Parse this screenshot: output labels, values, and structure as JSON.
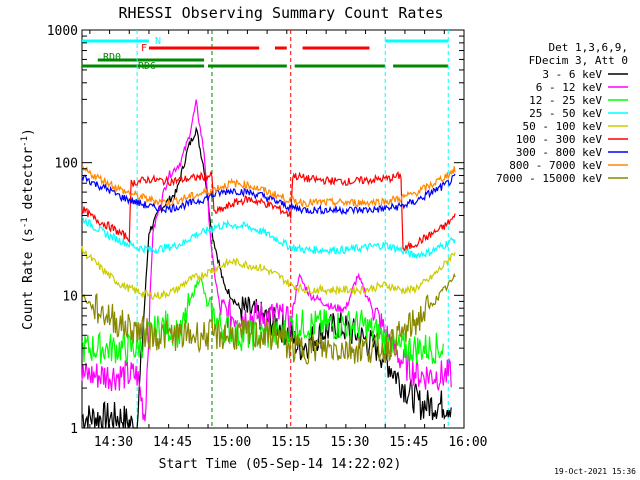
{
  "chart_data": {
    "type": "line",
    "title": "RHESSI Observing Summary Count Rates",
    "xlabel": "Start Time (05-Sep-14 14:22:02)",
    "ylabel": "Count Rate (s",
    "ylabel_sup": "-1",
    "ylabel_tail": " detector",
    "ylabel_tail_sup": "-1",
    "ylabel_close": ")",
    "yscale": "log",
    "ylim": [
      1,
      1000
    ],
    "xlim_minutes": [
      0,
      97
    ],
    "x_tick_labels": [
      {
        "label": "14:30",
        "minute": 8
      },
      {
        "label": "14:45",
        "minute": 23
      },
      {
        "label": "15:00",
        "minute": 38
      },
      {
        "label": "15:15",
        "minute": 53
      },
      {
        "label": "15:30",
        "minute": 68
      },
      {
        "label": "15:45",
        "minute": 83
      },
      {
        "label": "16:00",
        "minute": 98
      }
    ],
    "y_tick_labels": [
      {
        "label": "1",
        "value": 1
      },
      {
        "label": "10",
        "value": 10
      },
      {
        "label": "100",
        "value": 100
      },
      {
        "label": "1000",
        "value": 1000
      }
    ],
    "legend_header": [
      "Det 1,3,6,9,",
      "FDecim 3, Att 0"
    ],
    "legend_position": "right",
    "timestamp": "19-Oct-2021 15:36",
    "flags": [
      {
        "label": "N",
        "color": "#00ffff",
        "segments": [
          [
            0,
            17
          ],
          [
            77,
            93
          ]
        ]
      },
      {
        "label": "F",
        "color": "#ff0000",
        "segments": [
          [
            17,
            45
          ],
          [
            49,
            52
          ],
          [
            56,
            73
          ]
        ]
      },
      {
        "label": "RD0",
        "color": "#008800",
        "segments": [
          [
            4,
            31
          ]
        ]
      },
      {
        "label": "RD6",
        "color": "#008800",
        "segments": [
          [
            0,
            14
          ],
          [
            14,
            31
          ],
          [
            32,
            52
          ],
          [
            54,
            77
          ],
          [
            79,
            93
          ]
        ]
      }
    ],
    "series": [
      {
        "name": "3 - 6 keV",
        "color": "#000000",
        "points": [
          [
            0,
            1.2
          ],
          [
            10,
            1.2
          ],
          [
            14,
            1
          ],
          [
            17,
            30
          ],
          [
            20,
            45
          ],
          [
            24,
            60
          ],
          [
            27,
            130
          ],
          [
            29,
            180
          ],
          [
            31,
            90
          ],
          [
            33,
            30
          ],
          [
            36,
            12
          ],
          [
            40,
            8
          ],
          [
            45,
            7
          ],
          [
            50,
            6
          ],
          [
            53,
            5
          ],
          [
            55,
            4
          ],
          [
            60,
            5
          ],
          [
            65,
            6
          ],
          [
            70,
            5
          ],
          [
            75,
            4
          ],
          [
            78,
            3
          ],
          [
            82,
            2
          ],
          [
            86,
            1.5
          ],
          [
            90,
            1.5
          ],
          [
            94,
            1.5
          ]
        ]
      },
      {
        "name": "6 - 12 keV",
        "color": "#ff00ff",
        "points": [
          [
            0,
            2.5
          ],
          [
            10,
            2.5
          ],
          [
            14,
            2.5
          ],
          [
            16,
            1.2
          ],
          [
            18,
            30
          ],
          [
            20,
            50
          ],
          [
            22,
            80
          ],
          [
            25,
            100
          ],
          [
            27,
            150
          ],
          [
            29,
            280
          ],
          [
            31,
            120
          ],
          [
            33,
            20
          ],
          [
            35,
            8
          ],
          [
            38,
            7
          ],
          [
            42,
            7
          ],
          [
            46,
            7
          ],
          [
            50,
            7
          ],
          [
            53,
            6
          ],
          [
            55,
            14
          ],
          [
            58,
            10
          ],
          [
            61,
            9
          ],
          [
            64,
            8
          ],
          [
            67,
            8
          ],
          [
            70,
            14
          ],
          [
            73,
            9
          ],
          [
            76,
            6
          ],
          [
            79,
            4
          ],
          [
            82,
            3
          ],
          [
            86,
            2.5
          ],
          [
            90,
            2.5
          ],
          [
            94,
            2.5
          ]
        ]
      },
      {
        "name": "12 - 25 keV",
        "color": "#00ff00",
        "points": [
          [
            0,
            4
          ],
          [
            10,
            4
          ],
          [
            14,
            4
          ],
          [
            17,
            5
          ],
          [
            21,
            6
          ],
          [
            25,
            5
          ],
          [
            28,
            10
          ],
          [
            30,
            14
          ],
          [
            32,
            8
          ],
          [
            35,
            6
          ],
          [
            40,
            5
          ],
          [
            46,
            5
          ],
          [
            51,
            5
          ],
          [
            53,
            6
          ],
          [
            57,
            6
          ],
          [
            61,
            6
          ],
          [
            66,
            6
          ],
          [
            71,
            6
          ],
          [
            76,
            5
          ],
          [
            80,
            4
          ],
          [
            84,
            4
          ],
          [
            88,
            4
          ],
          [
            92,
            4
          ]
        ]
      },
      {
        "name": "25 - 50 keV",
        "color": "#00ffff",
        "points": [
          [
            0,
            38
          ],
          [
            3,
            33
          ],
          [
            7,
            28
          ],
          [
            11,
            25
          ],
          [
            14,
            23
          ],
          [
            18,
            22
          ],
          [
            22,
            23
          ],
          [
            26,
            25
          ],
          [
            28,
            28
          ],
          [
            31,
            30
          ],
          [
            34,
            33
          ],
          [
            38,
            34
          ],
          [
            42,
            33
          ],
          [
            46,
            30
          ],
          [
            50,
            26
          ],
          [
            53,
            23
          ],
          [
            57,
            22
          ],
          [
            62,
            22
          ],
          [
            67,
            22
          ],
          [
            72,
            23
          ],
          [
            77,
            24
          ],
          [
            81,
            22
          ],
          [
            84,
            20
          ],
          [
            88,
            21
          ],
          [
            92,
            24
          ],
          [
            95,
            27
          ]
        ]
      },
      {
        "name": "50 - 100 keV",
        "color": "#cccc00",
        "points": [
          [
            0,
            22
          ],
          [
            3,
            18
          ],
          [
            7,
            14
          ],
          [
            10,
            12
          ],
          [
            13,
            11
          ],
          [
            17,
            10
          ],
          [
            20,
            10
          ],
          [
            24,
            11
          ],
          [
            27,
            13
          ],
          [
            30,
            14
          ],
          [
            34,
            16
          ],
          [
            38,
            18
          ],
          [
            42,
            17
          ],
          [
            46,
            16
          ],
          [
            50,
            14
          ],
          [
            53,
            12
          ],
          [
            57,
            11
          ],
          [
            62,
            11
          ],
          [
            67,
            11
          ],
          [
            72,
            11
          ],
          [
            77,
            12
          ],
          [
            81,
            11
          ],
          [
            84,
            11
          ],
          [
            88,
            13
          ],
          [
            92,
            17
          ],
          [
            95,
            22
          ]
        ]
      },
      {
        "name": "100 - 300 keV",
        "color": "#ff0000",
        "points": [
          [
            0,
            45
          ],
          [
            3,
            38
          ],
          [
            7,
            33
          ],
          [
            10,
            29
          ],
          [
            12,
            27
          ],
          [
            12.5,
            70
          ],
          [
            17,
            75
          ],
          [
            22,
            72
          ],
          [
            26,
            75
          ],
          [
            30,
            78
          ],
          [
            33,
            80
          ],
          [
            33.5,
            42
          ],
          [
            36,
            45
          ],
          [
            39,
            50
          ],
          [
            42,
            53
          ],
          [
            46,
            50
          ],
          [
            50,
            45
          ],
          [
            53,
            40
          ],
          [
            53.5,
            80
          ],
          [
            58,
            75
          ],
          [
            63,
            73
          ],
          [
            68,
            72
          ],
          [
            73,
            74
          ],
          [
            78,
            76
          ],
          [
            81,
            80
          ],
          [
            81.5,
            22
          ],
          [
            84,
            24
          ],
          [
            88,
            28
          ],
          [
            92,
            33
          ],
          [
            95,
            40
          ]
        ]
      },
      {
        "name": "300 - 800 keV",
        "color": "#0000ff",
        "points": [
          [
            0,
            80
          ],
          [
            3,
            70
          ],
          [
            7,
            62
          ],
          [
            10,
            55
          ],
          [
            14,
            50
          ],
          [
            18,
            46
          ],
          [
            22,
            45
          ],
          [
            26,
            48
          ],
          [
            30,
            52
          ],
          [
            34,
            58
          ],
          [
            38,
            62
          ],
          [
            42,
            60
          ],
          [
            46,
            56
          ],
          [
            50,
            50
          ],
          [
            53,
            46
          ],
          [
            57,
            44
          ],
          [
            62,
            44
          ],
          [
            67,
            44
          ],
          [
            72,
            44
          ],
          [
            77,
            45
          ],
          [
            81,
            47
          ],
          [
            84,
            50
          ],
          [
            88,
            58
          ],
          [
            92,
            67
          ],
          [
            95,
            78
          ]
        ]
      },
      {
        "name": "800 - 7000 keV",
        "color": "#ff8800",
        "points": [
          [
            0,
            90
          ],
          [
            3,
            80
          ],
          [
            7,
            70
          ],
          [
            10,
            62
          ],
          [
            14,
            56
          ],
          [
            18,
            52
          ],
          [
            22,
            50
          ],
          [
            26,
            54
          ],
          [
            30,
            58
          ],
          [
            34,
            64
          ],
          [
            38,
            70
          ],
          [
            42,
            68
          ],
          [
            46,
            62
          ],
          [
            50,
            56
          ],
          [
            53,
            52
          ],
          [
            57,
            50
          ],
          [
            62,
            50
          ],
          [
            67,
            50
          ],
          [
            72,
            50
          ],
          [
            77,
            51
          ],
          [
            81,
            54
          ],
          [
            84,
            58
          ],
          [
            88,
            66
          ],
          [
            92,
            78
          ],
          [
            95,
            90
          ]
        ]
      },
      {
        "name": "7000 - 15000 keV",
        "color": "#888800",
        "points": [
          [
            0,
            10
          ],
          [
            3,
            8
          ],
          [
            7,
            7
          ],
          [
            10,
            6
          ],
          [
            14,
            5.5
          ],
          [
            18,
            5
          ],
          [
            22,
            5
          ],
          [
            26,
            5
          ],
          [
            30,
            5
          ],
          [
            34,
            5
          ],
          [
            38,
            5
          ],
          [
            42,
            5
          ],
          [
            46,
            5
          ],
          [
            50,
            5
          ],
          [
            53,
            4
          ],
          [
            57,
            4
          ],
          [
            62,
            4
          ],
          [
            67,
            4
          ],
          [
            72,
            4
          ],
          [
            77,
            4
          ],
          [
            81,
            5
          ],
          [
            84,
            6
          ],
          [
            88,
            8
          ],
          [
            92,
            11
          ],
          [
            95,
            14
          ]
        ]
      }
    ]
  }
}
